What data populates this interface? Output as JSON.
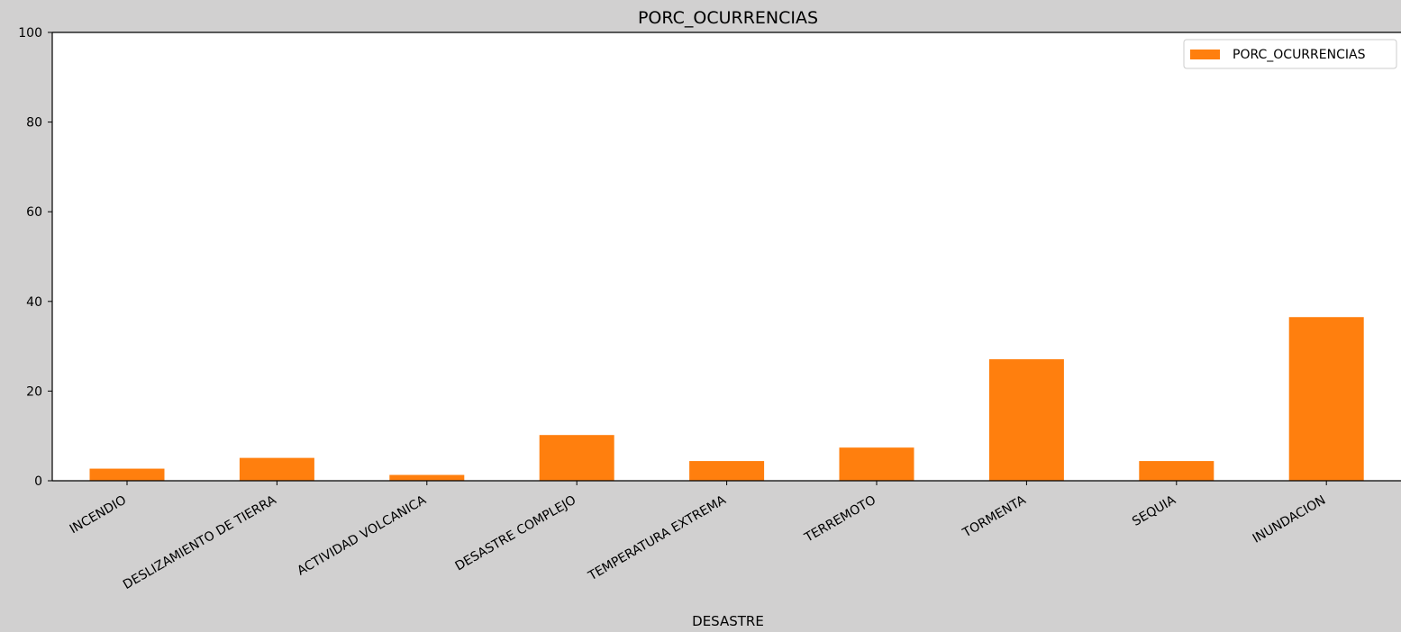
{
  "chart_data": {
    "type": "bar",
    "title": "PORC_OCURRENCIAS",
    "xlabel": "DESASTRE",
    "ylabel": "",
    "categories": [
      "INCENDIO",
      "DESLIZAMIENTO DE TIERRA",
      "ACTIVIDAD VOLCANICA",
      "DESASTRE COMPLEJO",
      "TEMPERATURA EXTREMA",
      "TERREMOTO",
      "TORMENTA",
      "SEQUIA",
      "INUNDACION"
    ],
    "series": [
      {
        "name": "PORC_OCURRENCIAS",
        "color": "#ff7f0e",
        "values": [
          2.7,
          5.1,
          1.3,
          10.2,
          4.4,
          7.4,
          27.1,
          4.4,
          36.5
        ]
      }
    ],
    "ylim": [
      0,
      100
    ],
    "yticks": [
      0,
      20,
      40,
      60,
      80,
      100
    ],
    "grid": false,
    "legend_position": "top-right",
    "colors": {
      "figure_background": "#d1d0d0",
      "plot_background": "#ffffff",
      "axis": "#000000"
    }
  }
}
